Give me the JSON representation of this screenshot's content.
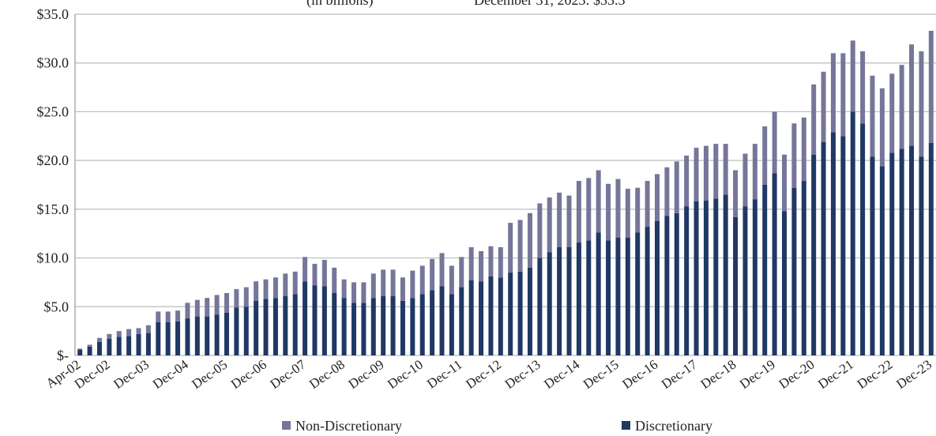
{
  "chart_data": {
    "type": "stacked_bar",
    "title": "(in billions)",
    "subtitle": "December 31, 2023: $33.3",
    "categories": [
      "Apr-02",
      null,
      null,
      "Dec-02",
      null,
      null,
      null,
      "Dec-03",
      null,
      null,
      null,
      "Dec-04",
      null,
      null,
      null,
      "Dec-05",
      null,
      null,
      null,
      "Dec-06",
      null,
      null,
      null,
      "Dec-07",
      null,
      null,
      null,
      "Dec-08",
      null,
      null,
      null,
      "Dec-09",
      null,
      null,
      null,
      "Dec-10",
      null,
      null,
      null,
      "Dec-11",
      null,
      null,
      null,
      "Dec-12",
      null,
      null,
      null,
      "Dec-13",
      null,
      null,
      null,
      "Dec-14",
      null,
      null,
      null,
      "Dec-15",
      null,
      null,
      null,
      "Dec-16",
      null,
      null,
      null,
      "Dec-17",
      null,
      null,
      null,
      "Dec-18",
      null,
      null,
      null,
      "Dec-19",
      null,
      null,
      null,
      "Dec-20",
      null,
      null,
      null,
      "Dec-21",
      null,
      null,
      null,
      "Dec-22",
      null,
      null,
      null,
      "Dec-23"
    ],
    "series": [
      {
        "name": "Discretionary",
        "color": "#1f3864",
        "values": [
          0.6,
          0.9,
          1.4,
          1.7,
          1.9,
          2.0,
          2.2,
          2.3,
          3.4,
          3.4,
          3.5,
          3.8,
          4.0,
          4.0,
          4.2,
          4.4,
          4.9,
          5.0,
          5.6,
          5.8,
          5.9,
          6.1,
          6.3,
          7.6,
          7.2,
          7.1,
          6.4,
          5.9,
          5.4,
          5.4,
          5.9,
          6.1,
          6.1,
          5.6,
          5.9,
          6.3,
          6.7,
          7.1,
          6.3,
          7.0,
          7.7,
          7.6,
          8.1,
          8.0,
          8.5,
          8.6,
          9.0,
          10.0,
          10.6,
          11.1,
          11.1,
          11.6,
          11.8,
          12.6,
          11.8,
          12.1,
          12.1,
          12.6,
          13.2,
          13.8,
          14.3,
          14.6,
          15.3,
          15.8,
          15.9,
          16.1,
          16.5,
          14.2,
          15.3,
          16.0,
          17.5,
          18.7,
          14.8,
          17.2,
          17.9,
          20.6,
          21.9,
          22.9,
          22.5,
          25.0,
          23.8,
          20.4,
          19.4,
          20.8,
          21.2,
          21.5,
          20.4,
          21.8
        ]
      },
      {
        "name": "Non-Discretionary",
        "color": "#76769a",
        "values": [
          0.1,
          0.2,
          0.4,
          0.5,
          0.6,
          0.7,
          0.6,
          0.8,
          1.1,
          1.1,
          1.1,
          1.6,
          1.7,
          1.9,
          2.0,
          2.0,
          1.9,
          2.0,
          2.0,
          2.0,
          2.1,
          2.3,
          2.3,
          2.5,
          2.2,
          2.7,
          2.6,
          1.9,
          2.1,
          2.1,
          2.5,
          2.7,
          2.7,
          2.4,
          2.8,
          2.9,
          3.2,
          3.4,
          2.9,
          3.1,
          3.4,
          3.1,
          3.1,
          3.1,
          5.1,
          5.3,
          5.6,
          5.6,
          5.6,
          5.6,
          5.3,
          6.3,
          6.4,
          6.4,
          5.8,
          6.0,
          5.0,
          4.6,
          4.7,
          4.8,
          5.0,
          5.3,
          5.2,
          5.5,
          5.6,
          5.6,
          5.2,
          4.8,
          5.4,
          5.7,
          6.0,
          6.3,
          5.8,
          6.6,
          6.5,
          7.2,
          7.2,
          8.1,
          8.5,
          7.3,
          7.4,
          8.3,
          8.0,
          8.1,
          8.6,
          10.4,
          10.8,
          11.5
        ]
      }
    ],
    "ylim": [
      0,
      35
    ],
    "yticks": [
      {
        "value": 0,
        "label": "$-"
      },
      {
        "value": 5,
        "label": "$5.0"
      },
      {
        "value": 10,
        "label": "$10.0"
      },
      {
        "value": 15,
        "label": "$15.0"
      },
      {
        "value": 20,
        "label": "$20.0"
      },
      {
        "value": 25,
        "label": "$25.0"
      },
      {
        "value": 30,
        "label": "$30.0"
      },
      {
        "value": 35,
        "label": "$35.0"
      }
    ],
    "grid": true,
    "legend": "bottom"
  }
}
